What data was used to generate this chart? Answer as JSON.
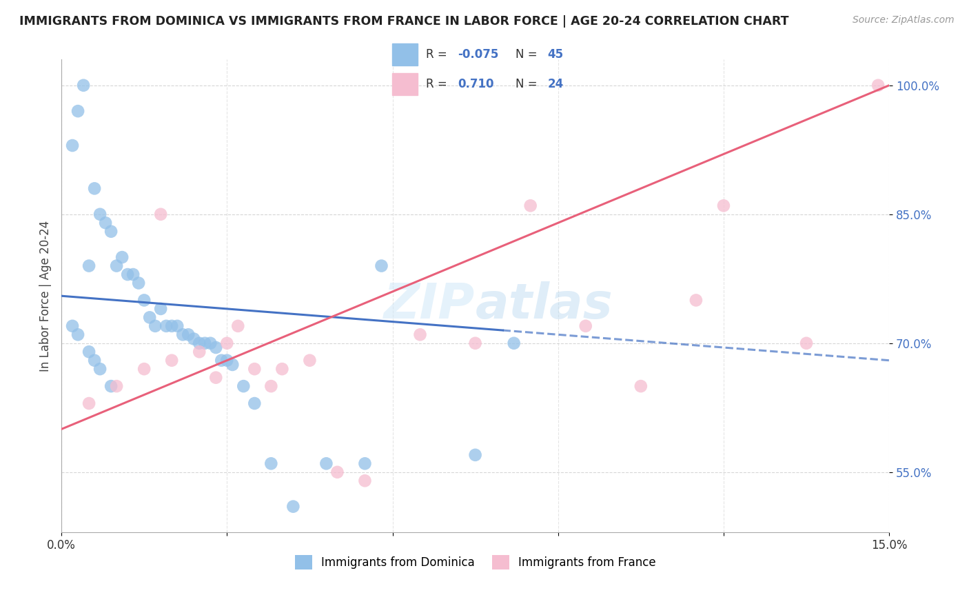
{
  "title": "IMMIGRANTS FROM DOMINICA VS IMMIGRANTS FROM FRANCE IN LABOR FORCE | AGE 20-24 CORRELATION CHART",
  "source": "Source: ZipAtlas.com",
  "ylabel": "In Labor Force | Age 20-24",
  "xlim": [
    0.0,
    15.0
  ],
  "ylim": [
    48.0,
    103.0
  ],
  "yticks": [
    55.0,
    70.0,
    85.0,
    100.0
  ],
  "r_blue": -0.075,
  "n_blue": 45,
  "r_pink": 0.71,
  "n_pink": 24,
  "blue_color": "#92c0e8",
  "pink_color": "#f5bdd0",
  "blue_line_color": "#4472c4",
  "pink_line_color": "#e8607a",
  "blue_scatter_x": [
    0.2,
    0.3,
    0.4,
    0.5,
    0.6,
    0.7,
    0.8,
    0.9,
    1.0,
    1.1,
    1.2,
    1.3,
    1.4,
    1.5,
    1.6,
    1.7,
    1.8,
    1.9,
    2.0,
    2.1,
    2.2,
    2.3,
    2.4,
    2.5,
    2.6,
    2.7,
    2.8,
    2.9,
    3.0,
    3.1,
    3.3,
    3.5,
    3.8,
    4.2,
    4.8,
    5.5,
    5.8,
    7.5,
    8.2,
    0.2,
    0.3,
    0.5,
    0.6,
    0.7,
    0.9
  ],
  "blue_scatter_y": [
    93.0,
    97.0,
    100.0,
    79.0,
    88.0,
    85.0,
    84.0,
    83.0,
    79.0,
    80.0,
    78.0,
    78.0,
    77.0,
    75.0,
    73.0,
    72.0,
    74.0,
    72.0,
    72.0,
    72.0,
    71.0,
    71.0,
    70.5,
    70.0,
    70.0,
    70.0,
    69.5,
    68.0,
    68.0,
    67.5,
    65.0,
    63.0,
    56.0,
    51.0,
    56.0,
    56.0,
    79.0,
    57.0,
    70.0,
    72.0,
    71.0,
    69.0,
    68.0,
    67.0,
    65.0
  ],
  "pink_scatter_x": [
    0.5,
    1.0,
    1.5,
    2.0,
    2.5,
    3.0,
    3.5,
    4.0,
    4.5,
    5.0,
    5.5,
    6.5,
    7.5,
    8.5,
    9.5,
    10.5,
    11.5,
    12.0,
    13.5,
    1.8,
    2.8,
    3.2,
    3.8,
    14.8
  ],
  "pink_scatter_y": [
    63.0,
    65.0,
    67.0,
    68.0,
    69.0,
    70.0,
    67.0,
    67.0,
    68.0,
    55.0,
    54.0,
    71.0,
    70.0,
    86.0,
    72.0,
    65.0,
    75.0,
    86.0,
    70.0,
    85.0,
    66.0,
    72.0,
    65.0,
    100.0
  ],
  "blue_trend_x": [
    0.0,
    15.0
  ],
  "blue_trend_y": [
    75.5,
    68.0
  ],
  "pink_trend_x": [
    0.0,
    15.0
  ],
  "pink_trend_y": [
    60.0,
    100.0
  ]
}
